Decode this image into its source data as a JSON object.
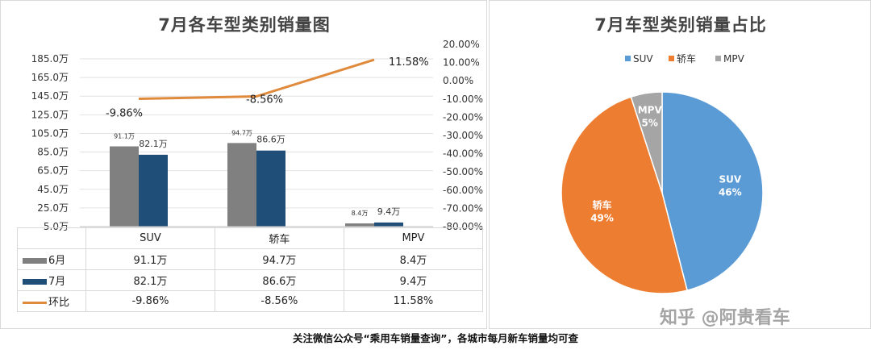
{
  "left_chart_title": "7月各车型类别销量图",
  "right_chart_title": "7月车型类别销量占比",
  "footer_text": "关注微信公众号“乘用车销量查询”，各城市每月新车销量均可查",
  "watermark_text": "知乎 @阿贵看车",
  "colors": {
    "june": "#808080",
    "july": "#1f4e79",
    "ratio": "#e08a3c",
    "suv": "#5b9bd5",
    "sedan": "#ed7d31",
    "mpv": "#a5a5a5"
  },
  "chart_data": [
    {
      "type": "bar",
      "title": "7月各车型类别销量图",
      "categories": [
        "SUV",
        "轿车",
        "MPV"
      ],
      "series": [
        {
          "name": "6月",
          "type": "bar",
          "values": [
            91.1,
            94.7,
            8.4
          ],
          "labels": [
            "91.1万",
            "94.7万",
            "8.4万"
          ]
        },
        {
          "name": "7月",
          "type": "bar",
          "values": [
            82.1,
            86.6,
            9.4
          ],
          "labels": [
            "82.1万",
            "86.6万",
            "9.4万"
          ]
        },
        {
          "name": "环比",
          "type": "line",
          "axis": "right",
          "values": [
            -9.86,
            -8.56,
            11.58
          ],
          "labels": [
            "-9.86%",
            "-8.56%",
            "11.58%"
          ]
        }
      ],
      "point_labels": {
        "june": [
          "91.1万",
          "94.7万",
          "8.4万"
        ],
        "july": [
          "82.1万",
          "86.6万",
          "9.4万"
        ],
        "ratio": [
          "-9.86%",
          "-8.56%",
          "11.58%"
        ]
      },
      "ylim": [
        5,
        185
      ],
      "y_ticks": [
        "185.0万",
        "165.0万",
        "145.0万",
        "125.0万",
        "105.0万",
        "85.0万",
        "65.0万",
        "45.0万",
        "25.0万",
        "5.0万"
      ],
      "y2lim": [
        -80,
        20
      ],
      "y2_ticks": [
        "20.00%",
        "10.00%",
        "0.00%",
        "-10.00%",
        "-20.00%",
        "-30.00%",
        "-40.00%",
        "-50.00%",
        "-60.00%",
        "-70.00%",
        "-80.00%"
      ],
      "grid": true,
      "table": {
        "columns": [
          "SUV",
          "轿车",
          "MPV"
        ],
        "rows": [
          {
            "label": "6月",
            "values": [
              "91.1万",
              "94.7万",
              "8.4万"
            ]
          },
          {
            "label": "7月",
            "values": [
              "82.1万",
              "86.6万",
              "9.4万"
            ]
          },
          {
            "label": "环比",
            "values": [
              "-9.86%",
              "-8.56%",
              "11.58%"
            ]
          }
        ]
      }
    },
    {
      "type": "pie",
      "title": "7月车型类别销量占比",
      "categories": [
        "SUV",
        "轿车",
        "MPV"
      ],
      "values": [
        46,
        49,
        5
      ],
      "labels": [
        "46%",
        "49%",
        "5%"
      ],
      "legend": "top"
    }
  ]
}
